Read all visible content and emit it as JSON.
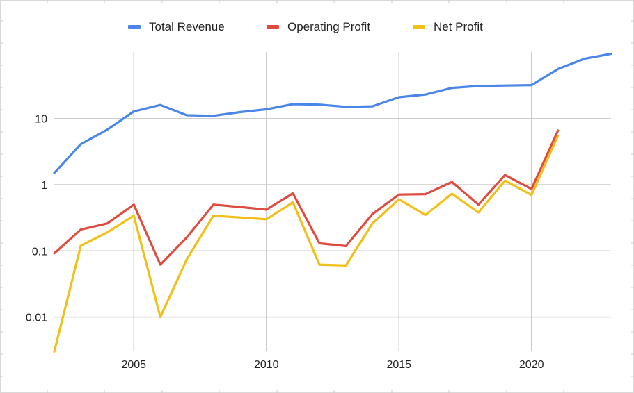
{
  "chart_data": {
    "type": "line",
    "y_scale": "log",
    "grid": true,
    "legend_position": "top",
    "ylim": [
      0.003,
      100
    ],
    "xlim": [
      2002,
      2023
    ],
    "x_ticks": [
      2005,
      2010,
      2015,
      2020
    ],
    "x_tick_labels": [
      "2005",
      "2010",
      "2015",
      "2020"
    ],
    "y_ticks": [
      0.01,
      0.1,
      1,
      10
    ],
    "y_tick_labels": [
      "0.01",
      "0.1",
      "1",
      "10"
    ],
    "x": [
      2002,
      2003,
      2004,
      2005,
      2006,
      2007,
      2008,
      2009,
      2010,
      2011,
      2012,
      2013,
      2014,
      2015,
      2016,
      2017,
      2018,
      2019,
      2020,
      2021,
      2022,
      2023
    ],
    "series": [
      {
        "name": "Total Revenue",
        "color": "#4a86e8",
        "values": [
          1.5,
          4.1,
          6.8,
          12.8,
          16.0,
          11.2,
          11.0,
          12.5,
          13.8,
          16.5,
          16.2,
          15.0,
          15.3,
          21.0,
          23.0,
          29.0,
          31.0,
          31.5,
          32.0,
          56.0,
          80.0,
          95.0
        ]
      },
      {
        "name": "Operating Profit",
        "color": "#e04b3f",
        "values": [
          0.092,
          0.21,
          0.26,
          0.5,
          0.062,
          0.16,
          0.5,
          0.46,
          0.42,
          0.74,
          0.13,
          0.118,
          0.36,
          0.71,
          0.72,
          1.1,
          0.5,
          1.4,
          0.86,
          6.6,
          null,
          null
        ]
      },
      {
        "name": "Net Profit",
        "color": "#f1bf16",
        "values": [
          0.003,
          0.12,
          0.19,
          0.34,
          0.01,
          0.075,
          0.34,
          0.32,
          0.3,
          0.54,
          0.062,
          0.06,
          0.26,
          0.6,
          0.35,
          0.73,
          0.38,
          1.15,
          0.7,
          5.5,
          null,
          null
        ]
      }
    ]
  }
}
